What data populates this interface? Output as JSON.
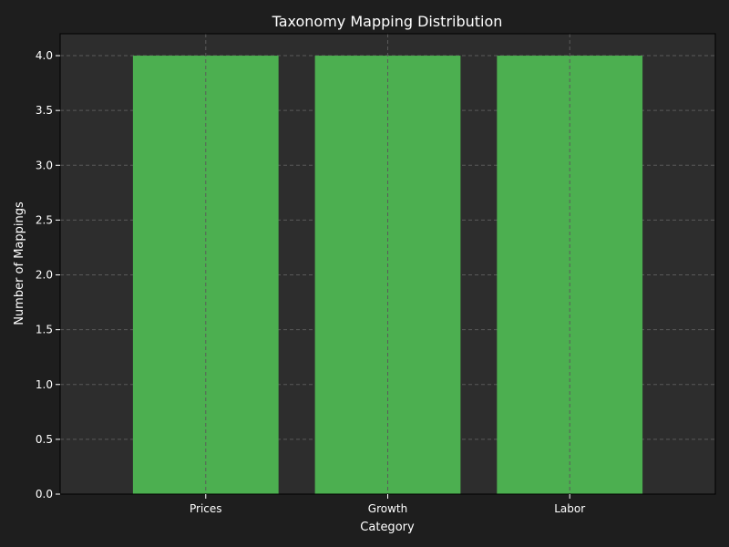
{
  "colors": {
    "figure_background": "#1e1e1e",
    "plot_background": "#2d2d2d",
    "bar": "#4caf50",
    "grid": "#5a5a5a",
    "text": "#ffffff"
  },
  "chart_data": {
    "type": "bar",
    "title": "Taxonomy Mapping Distribution",
    "xlabel": "Category",
    "ylabel": "Number of Mappings",
    "categories": [
      "Prices",
      "Growth",
      "Labor"
    ],
    "values": [
      4,
      4,
      4
    ],
    "ylim": [
      0,
      4.2
    ],
    "yticks": [
      "0.0",
      "0.5",
      "1.0",
      "1.5",
      "2.0",
      "2.5",
      "3.0",
      "3.5",
      "4.0"
    ],
    "grid": true,
    "grid_style": "dashed",
    "legend": "none"
  }
}
